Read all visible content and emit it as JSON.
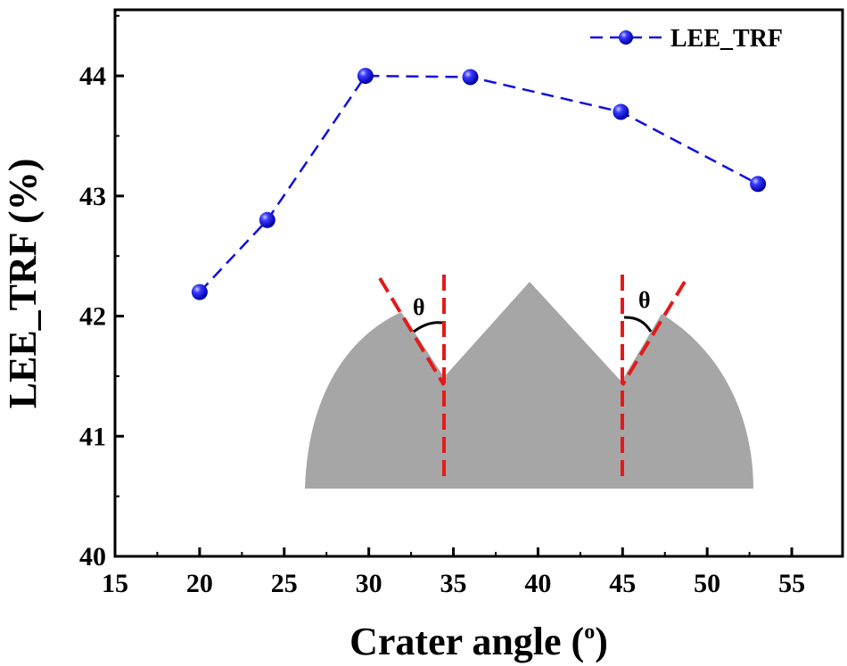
{
  "chart_data": {
    "type": "line",
    "xlabel": "Crater angle (",
    "xlabel_superscript": "o",
    "xlabel_suffix": ")",
    "ylabel": "LEE_TRF (%)",
    "xlim": [
      15,
      58
    ],
    "ylim": [
      40,
      44.55
    ],
    "x_ticks": [
      15,
      20,
      25,
      30,
      35,
      40,
      45,
      50,
      55
    ],
    "y_ticks": [
      40,
      41,
      42,
      43,
      44
    ],
    "grid": false,
    "legend_position": "top-right",
    "series": [
      {
        "name": "LEE_TRF",
        "color": "#1010e0",
        "line_style": "dashed",
        "marker": "sphere",
        "x": [
          20,
          24,
          29.8,
          36,
          44.9,
          53
        ],
        "y": [
          42.2,
          42.8,
          44.0,
          43.99,
          43.7,
          43.1
        ]
      }
    ],
    "inset": {
      "description_color": "#a6a6a6",
      "guide_color": "#e41a1a",
      "angle_label": "θ"
    }
  }
}
